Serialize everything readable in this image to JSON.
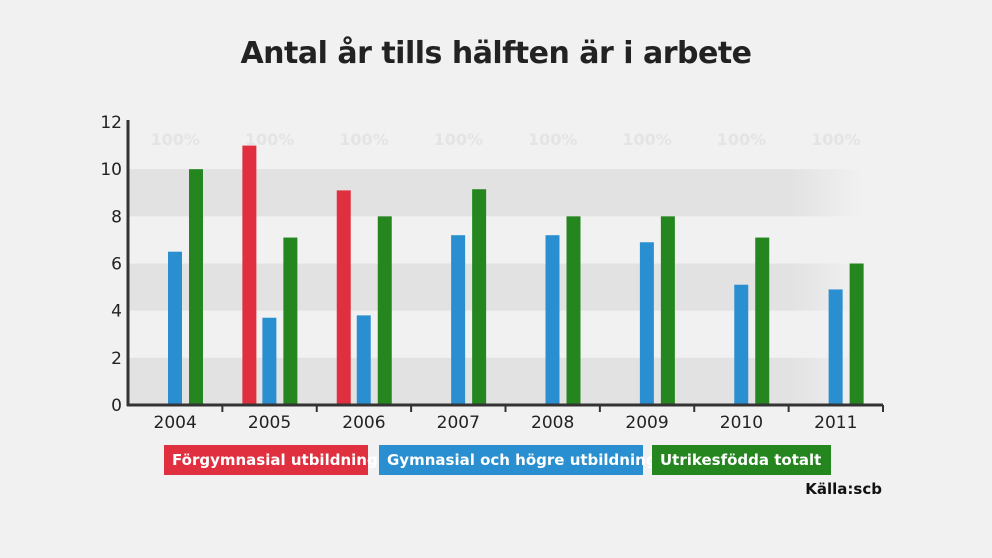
{
  "chart_data": {
    "type": "bar",
    "title": "Antal år tills hälften är i arbete",
    "categories": [
      "2004",
      "2005",
      "2006",
      "2007",
      "2008",
      "2009",
      "2010",
      "2011"
    ],
    "series": [
      {
        "name": "Förgymnasial utbildning",
        "color": "#e0303f",
        "values": [
          null,
          11.0,
          9.1,
          null,
          null,
          null,
          null,
          null
        ]
      },
      {
        "name": "Gymnasial och högre utbildning",
        "color": "#2a8fd0",
        "values": [
          6.5,
          3.7,
          3.8,
          7.2,
          7.2,
          6.9,
          5.1,
          4.9
        ]
      },
      {
        "name": "Utrikesfödda totalt",
        "color": "#25861f",
        "values": [
          10.0,
          7.1,
          8.0,
          9.15,
          8.0,
          8.0,
          7.1,
          6.0
        ]
      }
    ],
    "ylim": [
      0,
      12
    ],
    "yticks": [
      "0",
      "2",
      "4",
      "6",
      "8",
      "10",
      "12"
    ],
    "watermark_labels": [
      "100%",
      "100%",
      "100%",
      "100%",
      "100%",
      "100%",
      "100%",
      "100%"
    ],
    "legend": "bottom",
    "grid": "alternating bands"
  },
  "source": "Källa:scb"
}
